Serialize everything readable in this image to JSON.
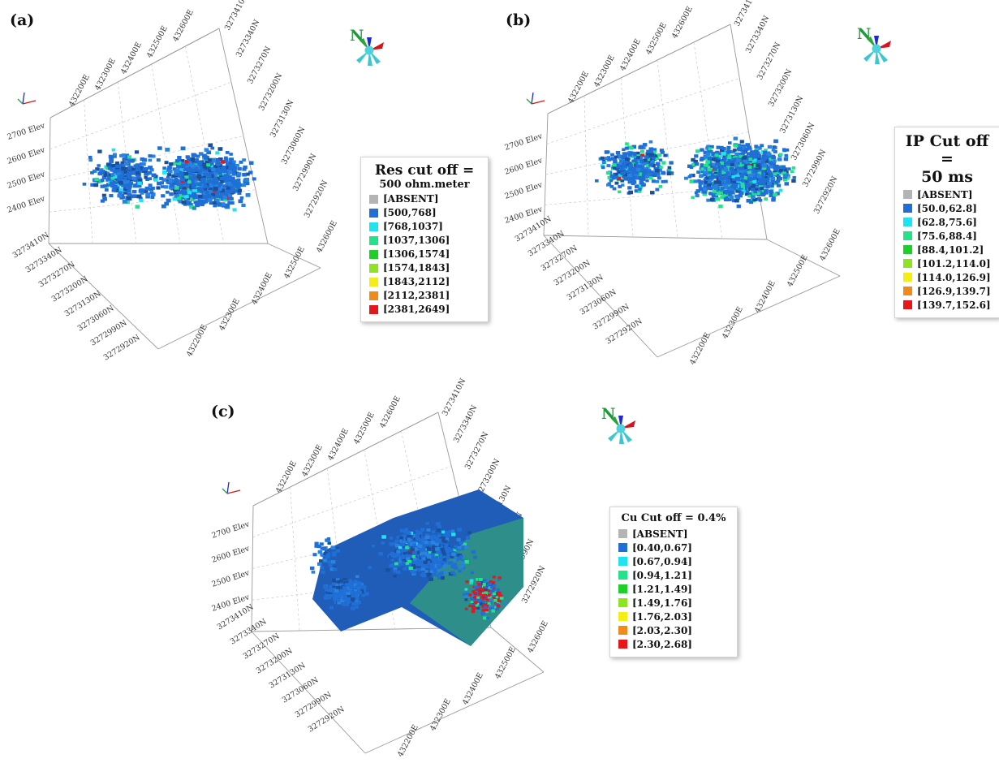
{
  "panels": [
    {
      "letter": "(a)",
      "legend": {
        "title_line1": "Res cut off =",
        "title_line2": "500 ohm.meter",
        "items": [
          {
            "label": "[ABSENT]",
            "color": "#b4b4b4"
          },
          {
            "label": "[500,768]",
            "color": "#1f6fd6"
          },
          {
            "label": "[768,1037]",
            "color": "#1fe3f0"
          },
          {
            "label": "[1037,1306]",
            "color": "#22e28a"
          },
          {
            "label": "[1306,1574]",
            "color": "#1fce2a"
          },
          {
            "label": "[1574,1843]",
            "color": "#8ee421"
          },
          {
            "label": "[1843,2112]",
            "color": "#f5ee16"
          },
          {
            "label": "[2112,2381]",
            "color": "#f08a1a"
          },
          {
            "label": "[2381,2649]",
            "color": "#e5171a"
          }
        ]
      }
    },
    {
      "letter": "(b)",
      "legend": {
        "title_line1": "IP Cut off =",
        "title_line2": "50 ms",
        "items": [
          {
            "label": "[ABSENT]",
            "color": "#b4b4b4"
          },
          {
            "label": "[50.0,62.8]",
            "color": "#1f6fd6"
          },
          {
            "label": "[62.8,75.6]",
            "color": "#1fe3f0"
          },
          {
            "label": "[75.6,88.4]",
            "color": "#22e28a"
          },
          {
            "label": "[88.4,101.2]",
            "color": "#1fce2a"
          },
          {
            "label": "[101.2,114.0]",
            "color": "#8ee421"
          },
          {
            "label": "[114.0,126.9]",
            "color": "#f5ee16"
          },
          {
            "label": "[126.9,139.7]",
            "color": "#f08a1a"
          },
          {
            "label": "[139.7,152.6]",
            "color": "#e5171a"
          }
        ]
      }
    },
    {
      "letter": "(c)",
      "legend": {
        "title_line1": "Cu Cut off = 0.4%",
        "title_line2": "",
        "items": [
          {
            "label": "[ABSENT]",
            "color": "#b4b4b4"
          },
          {
            "label": "[0.40,0.67]",
            "color": "#1f6fd6"
          },
          {
            "label": "[0.67,0.94]",
            "color": "#1fe3f0"
          },
          {
            "label": "[0.94,1.21]",
            "color": "#22e28a"
          },
          {
            "label": "[1.21,1.49]",
            "color": "#1fce2a"
          },
          {
            "label": "[1.49,1.76]",
            "color": "#8ee421"
          },
          {
            "label": "[1.76,2.03]",
            "color": "#f5ee16"
          },
          {
            "label": "[2.03,2.30]",
            "color": "#f08a1a"
          },
          {
            "label": "[2.30,2.68]",
            "color": "#e5171a"
          }
        ]
      }
    }
  ],
  "axes": {
    "easting_labels": [
      "432200E",
      "432300E",
      "432400E",
      "432500E",
      "432600E"
    ],
    "northing_labels": [
      "3273410N",
      "3273340N",
      "3273270N",
      "3273200N",
      "3273130N",
      "3273060N",
      "3272990N",
      "3272920N"
    ],
    "elevation_labels": [
      "2700 Elev",
      "2600 Elev",
      "2500 Elev",
      "2400 Elev"
    ]
  },
  "compass": {
    "label": "N"
  },
  "colors": {
    "block_dark": "#1a4f9c",
    "block_main": "#1f6fd6",
    "frame": "#9a9a9a"
  }
}
